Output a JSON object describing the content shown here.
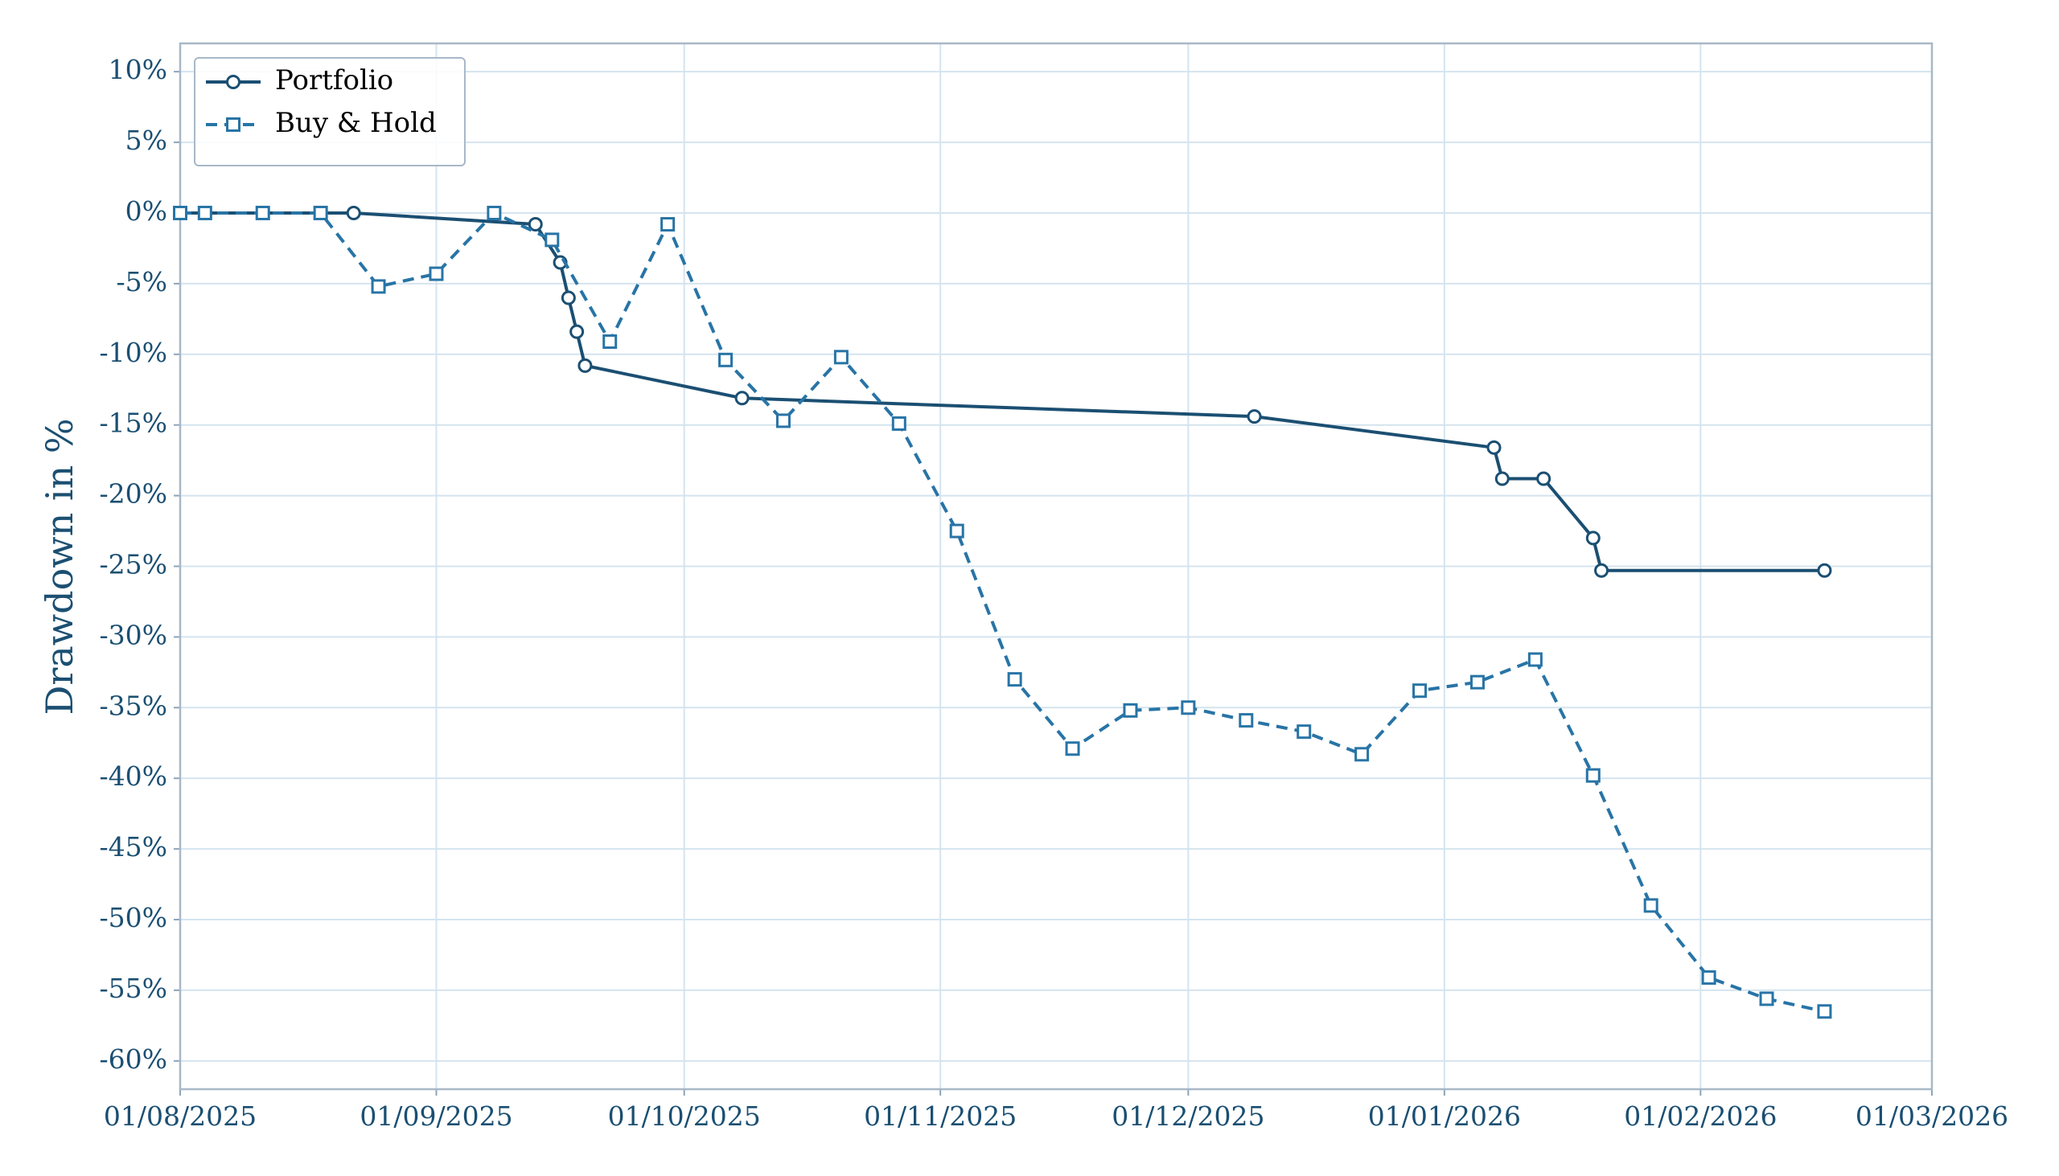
{
  "chart_data": {
    "type": "line",
    "ylabel": "Drawdown in %",
    "xlim": [
      "2025-08-01",
      "2026-03-01"
    ],
    "xticks": [
      {
        "value": "2025-08-01",
        "label": "01/08/2025"
      },
      {
        "value": "2025-09-01",
        "label": "01/09/2025"
      },
      {
        "value": "2025-10-01",
        "label": "01/10/2025"
      },
      {
        "value": "2025-11-01",
        "label": "01/11/2025"
      },
      {
        "value": "2025-12-01",
        "label": "01/12/2025"
      },
      {
        "value": "2026-01-01",
        "label": "01/01/2026"
      },
      {
        "value": "2026-02-01",
        "label": "01/02/2026"
      },
      {
        "value": "2026-03-01",
        "label": "01/03/2026"
      }
    ],
    "ylim": [
      -62,
      12
    ],
    "yticks": [
      {
        "value": 10,
        "label": "10%"
      },
      {
        "value": 5,
        "label": "5%"
      },
      {
        "value": 0,
        "label": "0%"
      },
      {
        "value": -5,
        "label": "-5%"
      },
      {
        "value": -10,
        "label": "-10%"
      },
      {
        "value": -15,
        "label": "-15%"
      },
      {
        "value": -20,
        "label": "-20%"
      },
      {
        "value": -25,
        "label": "-25%"
      },
      {
        "value": -30,
        "label": "-30%"
      },
      {
        "value": -35,
        "label": "-35%"
      },
      {
        "value": -40,
        "label": "-40%"
      },
      {
        "value": -45,
        "label": "-45%"
      },
      {
        "value": -50,
        "label": "-50%"
      },
      {
        "value": -55,
        "label": "-55%"
      },
      {
        "value": -60,
        "label": "-60%"
      }
    ],
    "grid": true,
    "legend": "upper left",
    "series": [
      {
        "name": "Portfolio",
        "color": "#1b4f72",
        "linestyle": "solid",
        "marker": "circle",
        "x": [
          "2025-08-01",
          "2025-08-22",
          "2025-09-13",
          "2025-09-16",
          "2025-09-17",
          "2025-09-18",
          "2025-09-19",
          "2025-10-08",
          "2025-12-09",
          "2026-01-07",
          "2026-01-08",
          "2026-01-13",
          "2026-01-19",
          "2026-01-20",
          "2026-02-16"
        ],
        "values": [
          0,
          0,
          -0.8,
          -3.5,
          -6.0,
          -8.4,
          -10.8,
          -13.1,
          -14.4,
          -16.6,
          -18.8,
          -18.8,
          -23.0,
          -25.3,
          -25.3
        ]
      },
      {
        "name": "Buy & Hold",
        "color": "#2874a6",
        "linestyle": "dashed",
        "marker": "square",
        "x": [
          "2025-08-01",
          "2025-08-04",
          "2025-08-11",
          "2025-08-18",
          "2025-08-25",
          "2025-09-01",
          "2025-09-08",
          "2025-09-15",
          "2025-09-22",
          "2025-09-29",
          "2025-10-06",
          "2025-10-13",
          "2025-10-20",
          "2025-10-27",
          "2025-11-03",
          "2025-11-10",
          "2025-11-17",
          "2025-11-24",
          "2025-12-01",
          "2025-12-08",
          "2025-12-15",
          "2025-12-22",
          "2025-12-29",
          "2026-01-05",
          "2026-01-12",
          "2026-01-19",
          "2026-01-26",
          "2026-02-02",
          "2026-02-09",
          "2026-02-16"
        ],
        "values": [
          0,
          0,
          0,
          0,
          -5.2,
          -4.3,
          0,
          -1.9,
          -9.1,
          -0.8,
          -10.4,
          -14.7,
          -10.2,
          -14.9,
          -22.5,
          -33.0,
          -37.9,
          -35.2,
          -35.0,
          -35.9,
          -36.7,
          -38.3,
          -33.8,
          -33.2,
          -31.6,
          -39.8,
          -49.0,
          -54.1,
          -55.6,
          -56.5
        ]
      }
    ]
  }
}
